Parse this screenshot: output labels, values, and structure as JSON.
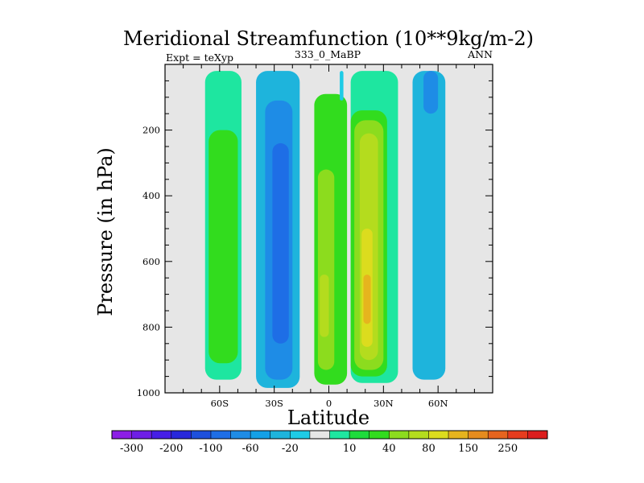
{
  "chart_data": {
    "type": "contour",
    "title": "Meridional Streamfunction (10**9kg/m-2)",
    "left_label": "Expt = teXyp",
    "center_label": "333_0_MaBP",
    "right_label": "ANN",
    "xlabel": "Latitude",
    "ylabel": "Pressure (in hPa)",
    "xlim": [
      -90,
      90
    ],
    "ylim": [
      1000,
      0
    ],
    "x_ticks": [
      {
        "value": -60,
        "label": "60S"
      },
      {
        "value": -30,
        "label": "30S"
      },
      {
        "value": 0,
        "label": "0"
      },
      {
        "value": 30,
        "label": "30N"
      },
      {
        "value": 60,
        "label": "60N"
      }
    ],
    "y_ticks": [
      {
        "value": 200,
        "label": "200"
      },
      {
        "value": 400,
        "label": "400"
      },
      {
        "value": 600,
        "label": "600"
      },
      {
        "value": 800,
        "label": "800"
      },
      {
        "value": 1000,
        "label": "1000"
      }
    ],
    "background_color": "#e6e6e6",
    "colorbar": {
      "colors": [
        "#8c1ee6",
        "#6e1ee6",
        "#461ee6",
        "#2828dc",
        "#1e50dc",
        "#1e6ee6",
        "#1e8ce6",
        "#14a0e6",
        "#1eb4dc",
        "#1ecbe6",
        "#e6e6e6",
        "#1ee6a0",
        "#1edc3c",
        "#32dc1e",
        "#8cdc1e",
        "#b4dc1e",
        "#dcdc1e",
        "#e6b41e",
        "#e68c1e",
        "#e6641e",
        "#e63c1e",
        "#dc1e1e"
      ],
      "tick_labels": [
        "-300",
        "-200",
        "-100",
        "-60",
        "-20",
        "10",
        "40",
        "80",
        "150",
        "250"
      ]
    },
    "regions": [
      {
        "color": "#1ee6a0",
        "lat": [
          -68,
          -48
        ],
        "top": 20,
        "bottom": 960
      },
      {
        "color": "#32dc1e",
        "lat": [
          -66,
          -50
        ],
        "top": 200,
        "bottom": 910
      },
      {
        "color": "#1eb4dc",
        "lat": [
          -40,
          -16
        ],
        "top": 20,
        "bottom": 985
      },
      {
        "color": "#1e8ce6",
        "lat": [
          -35,
          -20
        ],
        "top": 110,
        "bottom": 960
      },
      {
        "color": "#1e6ee6",
        "lat": [
          -31,
          -22
        ],
        "top": 240,
        "bottom": 850
      },
      {
        "color": "#32dc1e",
        "lat": [
          -8,
          10
        ],
        "top": 90,
        "bottom": 975
      },
      {
        "color": "#8cdc1e",
        "lat": [
          -6,
          3
        ],
        "top": 320,
        "bottom": 930
      },
      {
        "color": "#b4dc1e",
        "lat": [
          -5,
          0
        ],
        "top": 640,
        "bottom": 830
      },
      {
        "color": "#1ee6a0",
        "lat": [
          12,
          38
        ],
        "top": 20,
        "bottom": 970
      },
      {
        "color": "#32dc1e",
        "lat": [
          12,
          32
        ],
        "top": 140,
        "bottom": 950
      },
      {
        "color": "#8cdc1e",
        "lat": [
          14,
          30
        ],
        "top": 170,
        "bottom": 930
      },
      {
        "color": "#b4dc1e",
        "lat": [
          17,
          27
        ],
        "top": 210,
        "bottom": 900
      },
      {
        "color": "#dcdc1e",
        "lat": [
          18,
          24
        ],
        "top": 500,
        "bottom": 860
      },
      {
        "color": "#e6b41e",
        "lat": [
          19,
          23
        ],
        "top": 640,
        "bottom": 790
      },
      {
        "color": "#1ecbe6",
        "lat": [
          6,
          8
        ],
        "top": 20,
        "bottom": 110
      },
      {
        "color": "#1eb4dc",
        "lat": [
          46,
          64
        ],
        "top": 20,
        "bottom": 960
      },
      {
        "color": "#1e8ce6",
        "lat": [
          52,
          60
        ],
        "top": 20,
        "bottom": 150
      }
    ]
  }
}
